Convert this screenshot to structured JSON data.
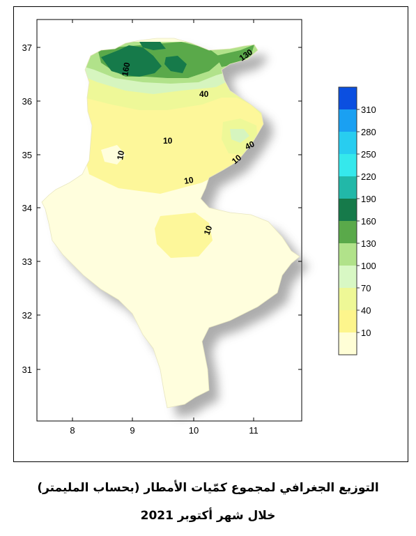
{
  "map": {
    "y_ticks": [
      "37",
      "36",
      "35",
      "34",
      "33",
      "32",
      "31"
    ],
    "x_ticks": [
      "8",
      "9",
      "10",
      "11"
    ],
    "contour_labels": [
      "130",
      "160",
      "40",
      "10",
      "40",
      "10",
      "10",
      "10",
      "10"
    ],
    "legend": {
      "labels": [
        "310",
        "280",
        "250",
        "220",
        "190",
        "160",
        "130",
        "100",
        "70",
        "40",
        "10"
      ],
      "colors": [
        "#0b4fe0",
        "#1aa0f2",
        "#28cdf0",
        "#35e8ec",
        "#22b8a8",
        "#167a4a",
        "#5aa94a",
        "#b1e28a",
        "#d8f8c4",
        "#eef896",
        "#fdf58c",
        "#fffed6"
      ]
    },
    "colors": {
      "base": "#fffedd",
      "light_yellow": "#fdf79a",
      "yellow_green": "#eef898",
      "pale_green": "#d6f5bf",
      "light_green": "#b1e28a",
      "green": "#5aa94a",
      "dark_green": "#167a4a"
    }
  },
  "caption": {
    "line1": "التوزيع الجغرافي لمجموع كمّيات الأمطار (بحساب المليمتر)",
    "line2": "خلال شهر أكتوبر 2021"
  }
}
